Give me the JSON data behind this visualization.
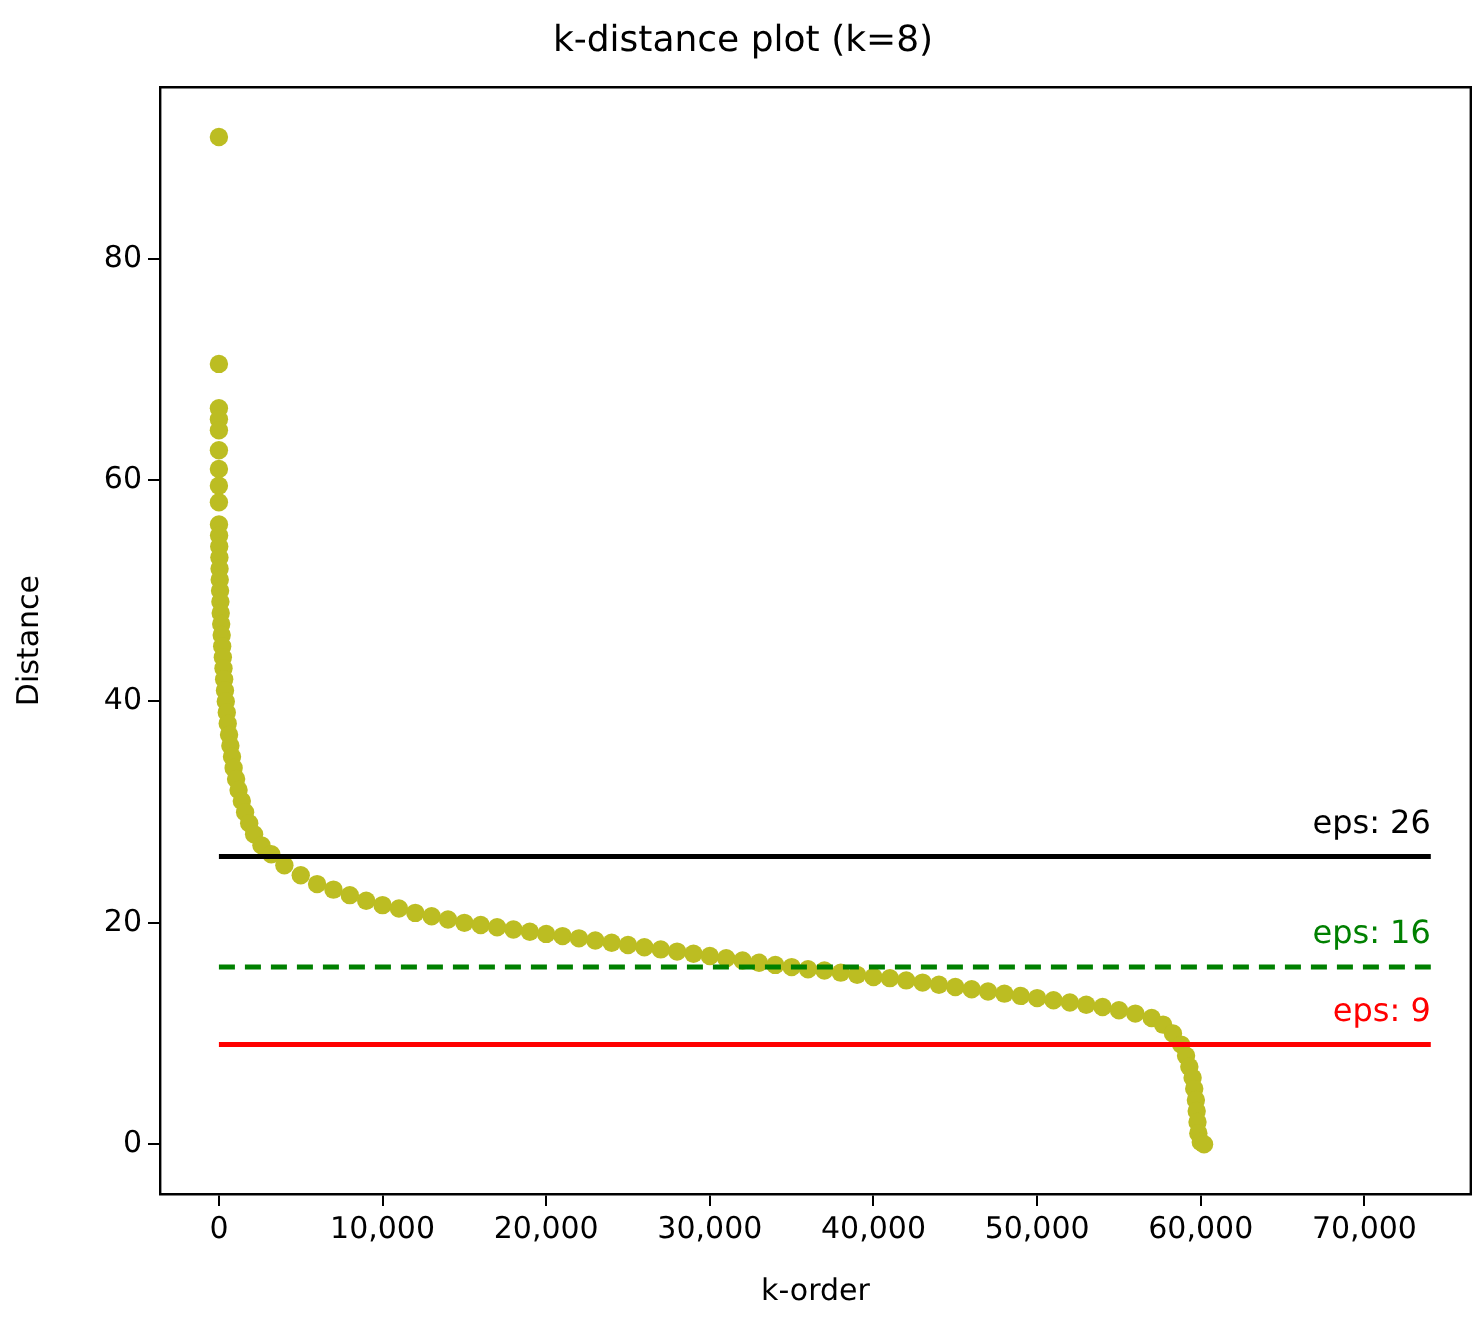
{
  "chart_data": {
    "type": "scatter",
    "title": "k-distance plot (k=8)",
    "xlabel": "k-order",
    "ylabel": "Distance",
    "series": [
      {
        "color": "#bcbd22",
        "x": [
          0,
          0,
          0,
          0,
          0,
          0,
          0,
          0,
          0,
          5,
          10,
          20,
          30,
          40,
          50,
          70,
          90,
          110,
          140,
          170,
          200,
          240,
          280,
          320,
          370,
          420,
          480,
          540,
          620,
          700,
          800,
          900,
          1050,
          1200,
          1400,
          1600,
          1850,
          2150,
          2600,
          3200,
          4000,
          5000,
          6000,
          7000,
          8000,
          9000,
          10000,
          11000,
          12000,
          13000,
          14000,
          15000,
          16000,
          17000,
          18000,
          19000,
          20000,
          21000,
          22000,
          23000,
          24000,
          25000,
          26000,
          27000,
          28000,
          29000,
          30000,
          31000,
          32000,
          33000,
          34000,
          35000,
          36000,
          37000,
          38000,
          39000,
          40000,
          41000,
          42000,
          43000,
          44000,
          45000,
          46000,
          47000,
          48000,
          49000,
          50000,
          51000,
          52000,
          53000,
          54000,
          55000,
          56000,
          57000,
          57700,
          58300,
          58800,
          59100,
          59300,
          59500,
          59600,
          59700,
          59750,
          59800,
          59850,
          60000,
          60200
        ],
        "values": [
          91,
          70.5,
          66.5,
          65.5,
          64.5,
          62.7,
          61,
          59.5,
          58,
          56,
          55,
          54,
          53,
          52,
          51,
          50,
          49,
          48,
          47,
          46,
          45,
          44,
          43,
          42,
          41,
          40,
          39,
          38,
          37,
          36,
          35,
          34,
          33,
          32,
          31,
          30,
          29,
          28,
          27,
          26.2,
          25.2,
          24.3,
          23.5,
          23,
          22.5,
          22,
          21.6,
          21.3,
          20.9,
          20.6,
          20.3,
          20,
          19.8,
          19.6,
          19.4,
          19.2,
          19,
          18.8,
          18.6,
          18.4,
          18.2,
          18,
          17.8,
          17.6,
          17.4,
          17.2,
          17,
          16.8,
          16.6,
          16.4,
          16.2,
          16,
          15.8,
          15.7,
          15.5,
          15.3,
          15.1,
          15,
          14.8,
          14.6,
          14.4,
          14.2,
          14,
          13.8,
          13.6,
          13.4,
          13.2,
          13,
          12.8,
          12.6,
          12.4,
          12.1,
          11.8,
          11.4,
          10.8,
          10,
          9,
          8,
          7,
          6,
          5,
          4,
          3,
          2,
          1,
          0.2,
          0
        ]
      }
    ],
    "marker": "circle",
    "xlim": [
      -3600,
      76500
    ],
    "ylim": [
      -4.5,
      95.5
    ],
    "xticks": [
      0,
      {
        "value": 10000,
        "label": "10,000"
      },
      {
        "value": 20000,
        "label": "20,000"
      },
      {
        "value": 30000,
        "label": "30,000"
      },
      {
        "value": 40000,
        "label": "40,000"
      },
      {
        "value": 50000,
        "label": "50,000"
      },
      {
        "value": 60000,
        "label": "60,000"
      },
      {
        "value": 70000,
        "label": "70,000"
      }
    ],
    "yticks": [
      0,
      20,
      40,
      60,
      80
    ],
    "ref_lines": [
      {
        "axis": "y",
        "value": 26,
        "label": "eps: 26",
        "color": "#000000",
        "line_style": "solid"
      },
      {
        "axis": "y",
        "value": 16,
        "label": "eps: 16",
        "color": "#008000",
        "line_style": "dashed"
      },
      {
        "axis": "y",
        "value": 9,
        "label": "eps: 9",
        "color": "#ff0000",
        "line_style": "solid"
      }
    ],
    "grid": false,
    "legend": false
  }
}
